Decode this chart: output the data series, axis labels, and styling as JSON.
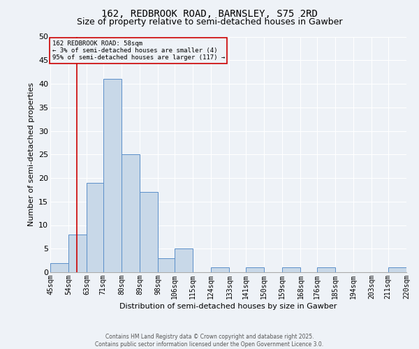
{
  "title_line1": "162, REDBROOK ROAD, BARNSLEY, S75 2RD",
  "title_line2": "Size of property relative to semi-detached houses in Gawber",
  "xlabel": "Distribution of semi-detached houses by size in Gawber",
  "ylabel": "Number of semi-detached properties",
  "bin_labels": [
    "45sqm",
    "54sqm",
    "63sqm",
    "71sqm",
    "80sqm",
    "89sqm",
    "98sqm",
    "106sqm",
    "115sqm",
    "124sqm",
    "133sqm",
    "141sqm",
    "150sqm",
    "159sqm",
    "168sqm",
    "176sqm",
    "185sqm",
    "194sqm",
    "203sqm",
    "211sqm",
    "220sqm"
  ],
  "bar_heights": [
    2,
    8,
    19,
    41,
    25,
    17,
    3,
    5,
    0,
    1,
    0,
    1,
    0,
    1,
    0,
    1,
    0,
    0,
    0,
    1,
    0
  ],
  "bin_edges": [
    45,
    54,
    63,
    71,
    80,
    89,
    98,
    106,
    115,
    124,
    133,
    141,
    150,
    159,
    168,
    176,
    185,
    194,
    203,
    211,
    220
  ],
  "bar_color": "#c8d8e8",
  "bar_edge_color": "#5b8fc9",
  "property_size": 58,
  "red_line_color": "#cc0000",
  "ylim": [
    0,
    50
  ],
  "annotation_text": "162 REDBROOK ROAD: 58sqm\n← 3% of semi-detached houses are smaller (4)\n95% of semi-detached houses are larger (117) →",
  "annotation_box_color": "#cc0000",
  "footer_text": "Contains HM Land Registry data © Crown copyright and database right 2025.\nContains public sector information licensed under the Open Government Licence 3.0.",
  "background_color": "#eef2f7",
  "grid_color": "#ffffff",
  "title_fontsize": 10,
  "subtitle_fontsize": 9,
  "tick_fontsize": 7,
  "ylabel_fontsize": 8,
  "xlabel_fontsize": 8,
  "annotation_fontsize": 6.5,
  "footer_fontsize": 5.5
}
